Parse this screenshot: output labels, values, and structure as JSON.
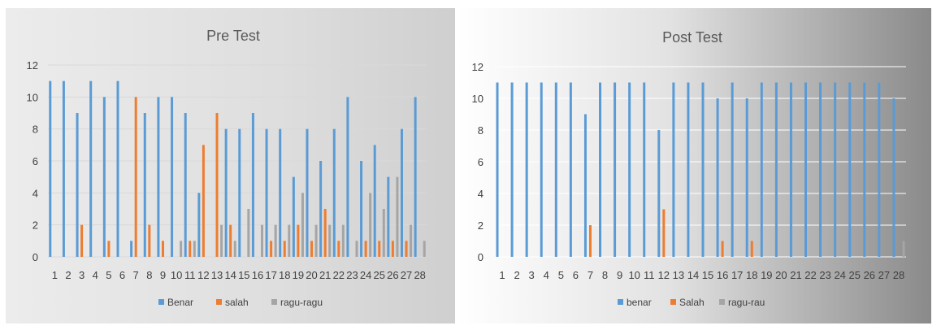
{
  "chart_data": [
    {
      "type": "bar",
      "title": "Pre Test",
      "categories": [
        "1",
        "2",
        "3",
        "4",
        "5",
        "6",
        "7",
        "8",
        "9",
        "10",
        "11",
        "12",
        "13",
        "14",
        "15",
        "16",
        "17",
        "18",
        "19",
        "20",
        "21",
        "22",
        "23",
        "24",
        "25",
        "26",
        "27",
        "28"
      ],
      "ylim": [
        0,
        12
      ],
      "yticks": [
        0,
        2,
        4,
        6,
        8,
        10,
        12
      ],
      "grid": true,
      "legend": "bottom",
      "series": [
        {
          "name": "Benar",
          "color": "#5B9BD5",
          "values": [
            11,
            11,
            9,
            11,
            10,
            11,
            1,
            9,
            10,
            10,
            9,
            4,
            0,
            8,
            8,
            9,
            8,
            8,
            5,
            8,
            6,
            8,
            10,
            6,
            7,
            5,
            8,
            10
          ]
        },
        {
          "name": "salah",
          "color": "#ED7D31",
          "values": [
            0,
            0,
            2,
            0,
            1,
            0,
            10,
            2,
            1,
            0,
            1,
            7,
            9,
            2,
            0,
            0,
            1,
            1,
            2,
            1,
            3,
            1,
            0,
            1,
            1,
            1,
            1,
            0
          ]
        },
        {
          "name": "ragu-ragu",
          "color": "#A5A5A5",
          "values": [
            0,
            0,
            0,
            0,
            0,
            0,
            0,
            0,
            0,
            1,
            1,
            0,
            2,
            1,
            3,
            2,
            2,
            2,
            4,
            2,
            2,
            2,
            1,
            4,
            3,
            5,
            2,
            1
          ]
        }
      ]
    },
    {
      "type": "bar",
      "title": "Post Test",
      "categories": [
        "1",
        "2",
        "3",
        "4",
        "5",
        "6",
        "7",
        "8",
        "9",
        "10",
        "11",
        "12",
        "13",
        "14",
        "15",
        "16",
        "17",
        "18",
        "19",
        "20",
        "21",
        "22",
        "23",
        "24",
        "25",
        "26",
        "27",
        "28"
      ],
      "ylim": [
        0,
        12
      ],
      "yticks": [
        0,
        2,
        4,
        6,
        8,
        10,
        12
      ],
      "grid": true,
      "legend": "bottom",
      "series": [
        {
          "name": "benar",
          "color": "#5B9BD5",
          "values": [
            11,
            11,
            11,
            11,
            11,
            11,
            9,
            11,
            11,
            11,
            11,
            8,
            11,
            11,
            11,
            10,
            11,
            10,
            11,
            11,
            11,
            11,
            11,
            11,
            11,
            11,
            11,
            10
          ]
        },
        {
          "name": "Salah",
          "color": "#ED7D31",
          "values": [
            0,
            0,
            0,
            0,
            0,
            0,
            2,
            0,
            0,
            0,
            0,
            3,
            0,
            0,
            0,
            1,
            0,
            1,
            0,
            0,
            0,
            0,
            0,
            0,
            0,
            0,
            0,
            0
          ]
        },
        {
          "name": "ragu-rau",
          "color": "#A5A5A5",
          "values": [
            0,
            0,
            0,
            0,
            0,
            0,
            0,
            0,
            0,
            0,
            0,
            0,
            0,
            0,
            0,
            0,
            0,
            0,
            0,
            0,
            0,
            0,
            0,
            0,
            0,
            0,
            0,
            1
          ]
        }
      ]
    }
  ]
}
